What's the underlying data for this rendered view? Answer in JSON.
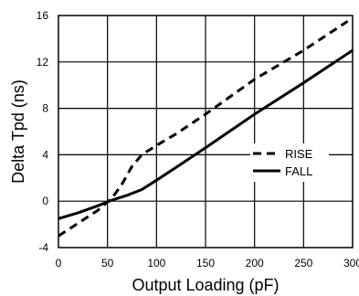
{
  "chart_data": {
    "type": "line",
    "xlabel": "Output Loading (pF)",
    "ylabel": "Delta Tpd (ns)",
    "xlim": [
      0,
      300
    ],
    "ylim": [
      -4,
      16
    ],
    "x_ticks": [
      0,
      50,
      100,
      150,
      200,
      250,
      300
    ],
    "x_tick_labels": [
      "0",
      "50",
      "100",
      "150",
      "200",
      "250",
      "300"
    ],
    "y_ticks": [
      -4,
      0,
      4,
      8,
      12,
      16
    ],
    "y_tick_labels": [
      "-4",
      "0",
      "4",
      "8",
      "12",
      "16"
    ],
    "grid": true,
    "legend_position": "center-right",
    "series": [
      {
        "name": "RISE",
        "style": "dashed",
        "color": "#000000",
        "x": [
          0,
          20,
          40,
          55,
          65,
          75,
          85,
          100,
          120,
          150,
          200,
          250,
          295
        ],
        "y": [
          -3.0,
          -1.9,
          -0.8,
          0.3,
          1.5,
          3.0,
          4.0,
          4.8,
          5.8,
          7.5,
          10.5,
          13.0,
          15.5
        ]
      },
      {
        "name": "FALL",
        "style": "solid",
        "color": "#000000",
        "x": [
          0,
          20,
          40,
          55,
          70,
          85,
          100,
          125,
          150,
          200,
          250,
          300
        ],
        "y": [
          -1.5,
          -1.0,
          -0.4,
          0.1,
          0.5,
          1.0,
          1.8,
          3.2,
          4.6,
          7.5,
          10.2,
          13.0
        ]
      }
    ]
  }
}
